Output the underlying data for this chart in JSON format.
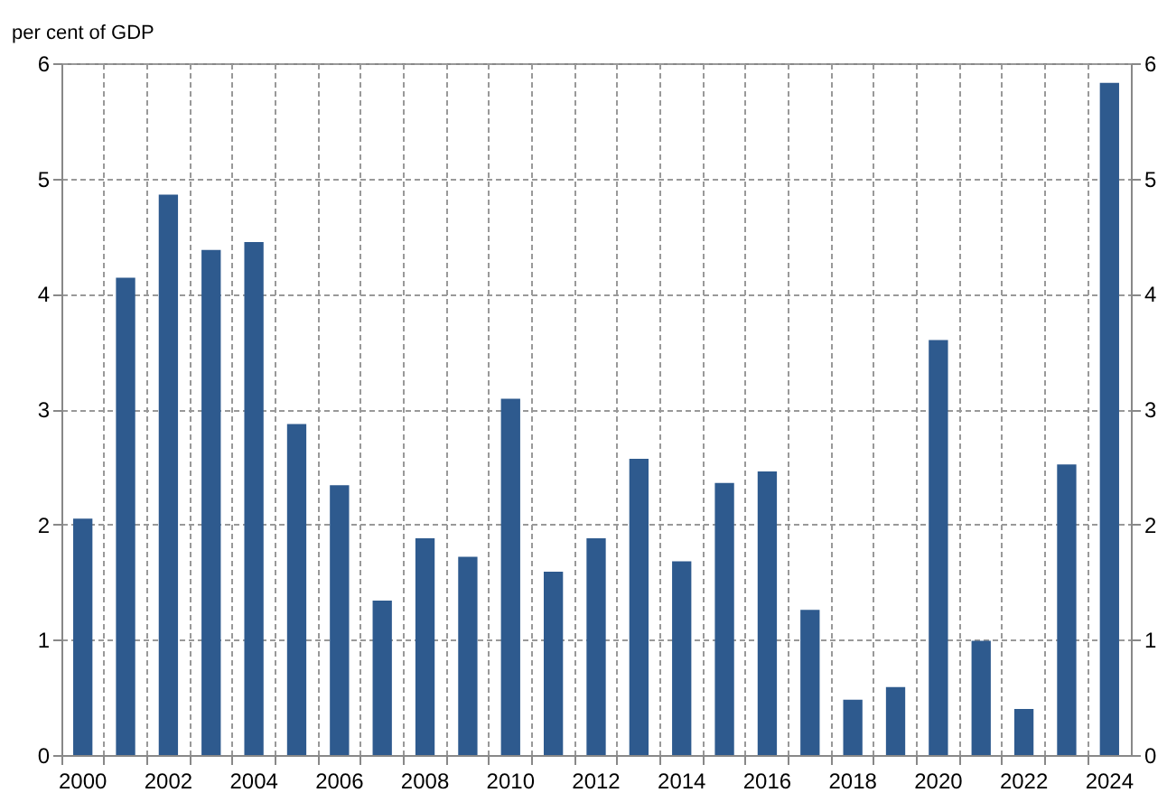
{
  "chart_data": {
    "type": "bar",
    "ylabel": "per cent of GDP",
    "categories": [
      "2000",
      null,
      "2002",
      null,
      "2004",
      null,
      "2006",
      null,
      "2008",
      null,
      "2010",
      null,
      "2012",
      null,
      "2014",
      null,
      "2016",
      null,
      "2018",
      null,
      "2020",
      null,
      "2022",
      null,
      "2024"
    ],
    "series": [
      {
        "color": "#2e5a8e",
        "values": [
          2.05,
          4.14,
          4.86,
          4.38,
          4.45,
          2.87,
          2.34,
          1.34,
          1.88,
          1.72,
          3.09,
          1.59,
          1.88,
          2.57,
          1.68,
          2.36,
          2.46,
          1.26,
          0.48,
          0.59,
          3.6,
          0.99,
          0.4,
          2.52,
          5.83
        ]
      }
    ],
    "ylim": [
      0,
      6
    ],
    "yticks": [
      0,
      1,
      2,
      3,
      4,
      5,
      6
    ],
    "y2lim": [
      0,
      6
    ],
    "y2ticks": [
      0,
      1,
      2,
      3,
      4,
      5,
      6
    ],
    "grid": true
  }
}
